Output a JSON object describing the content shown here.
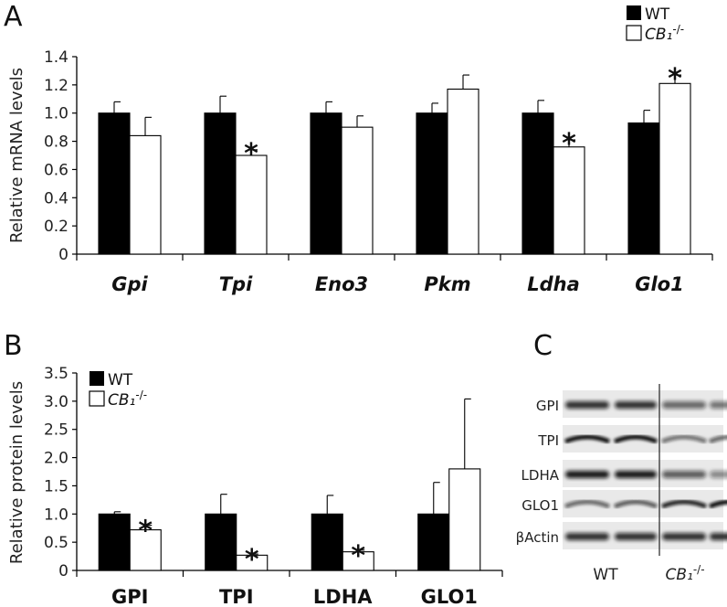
{
  "chart_data": [
    {
      "panel": "A",
      "type": "bar",
      "ylabel": "Relative mRNA levels",
      "ylim": [
        0,
        1.4
      ],
      "yticks": [
        "0",
        "0.2",
        "0.4",
        "0.6",
        "0.8",
        "1.0",
        "1.2",
        "1.4"
      ],
      "categories": [
        "Gpi",
        "Tpi",
        "Eno3",
        "Pkm",
        "Ldha",
        "Glo1"
      ],
      "series": [
        {
          "name": "WT",
          "color": "#000000",
          "values": [
            1.0,
            1.0,
            1.0,
            1.0,
            1.0,
            0.93
          ],
          "errors": [
            0.08,
            0.12,
            0.08,
            0.07,
            0.09,
            0.09
          ]
        },
        {
          "name": "CB₁",
          "name_sup": "-/-",
          "color": "#ffffff",
          "values": [
            0.84,
            0.7,
            0.9,
            1.17,
            0.76,
            1.21
          ],
          "errors": [
            0.13,
            0.04,
            0.08,
            0.1,
            0.05,
            0.06
          ]
        }
      ],
      "significance": [
        false,
        true,
        false,
        false,
        true,
        true
      ],
      "star": "*",
      "legend_position": "top-right"
    },
    {
      "panel": "B",
      "type": "bar",
      "ylabel": "Relative protein levels",
      "ylim": [
        0,
        3.5
      ],
      "yticks": [
        "0",
        "0.5",
        "1.0",
        "1.5",
        "2.0",
        "2.5",
        "3.0",
        "3.5"
      ],
      "categories": [
        "GPI",
        "TPI",
        "LDHA",
        "GLO1"
      ],
      "series": [
        {
          "name": "WT",
          "color": "#000000",
          "values": [
            1.0,
            1.0,
            1.0,
            1.0
          ],
          "errors": [
            0.04,
            0.35,
            0.33,
            0.56
          ]
        },
        {
          "name": "CB₁",
          "name_sup": "-/-",
          "color": "#ffffff",
          "values": [
            0.72,
            0.27,
            0.33,
            1.8
          ],
          "errors": [
            0.08,
            0.02,
            0.03,
            1.24
          ]
        }
      ],
      "significance": [
        true,
        true,
        true,
        false
      ],
      "star": "*",
      "legend_position": "top-left"
    }
  ],
  "blot": {
    "panel": "C",
    "rows": [
      "GPI",
      "TPI",
      "LDHA",
      "GLO1",
      "βActin"
    ],
    "groups": [
      {
        "label": "WT"
      },
      {
        "label": "CB₁",
        "sup": "-/-"
      }
    ]
  }
}
